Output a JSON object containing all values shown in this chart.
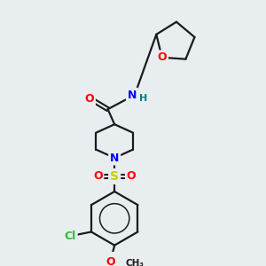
{
  "bg_color": "#e8eef0",
  "bond_color": "#1a1a1a",
  "colors": {
    "O": "#ff0000",
    "N": "#0000ff",
    "S": "#cccc00",
    "Cl": "#33bb33",
    "C": "#1a1a1a",
    "H": "#008080"
  },
  "figsize": [
    3.0,
    3.0
  ],
  "dpi": 100
}
